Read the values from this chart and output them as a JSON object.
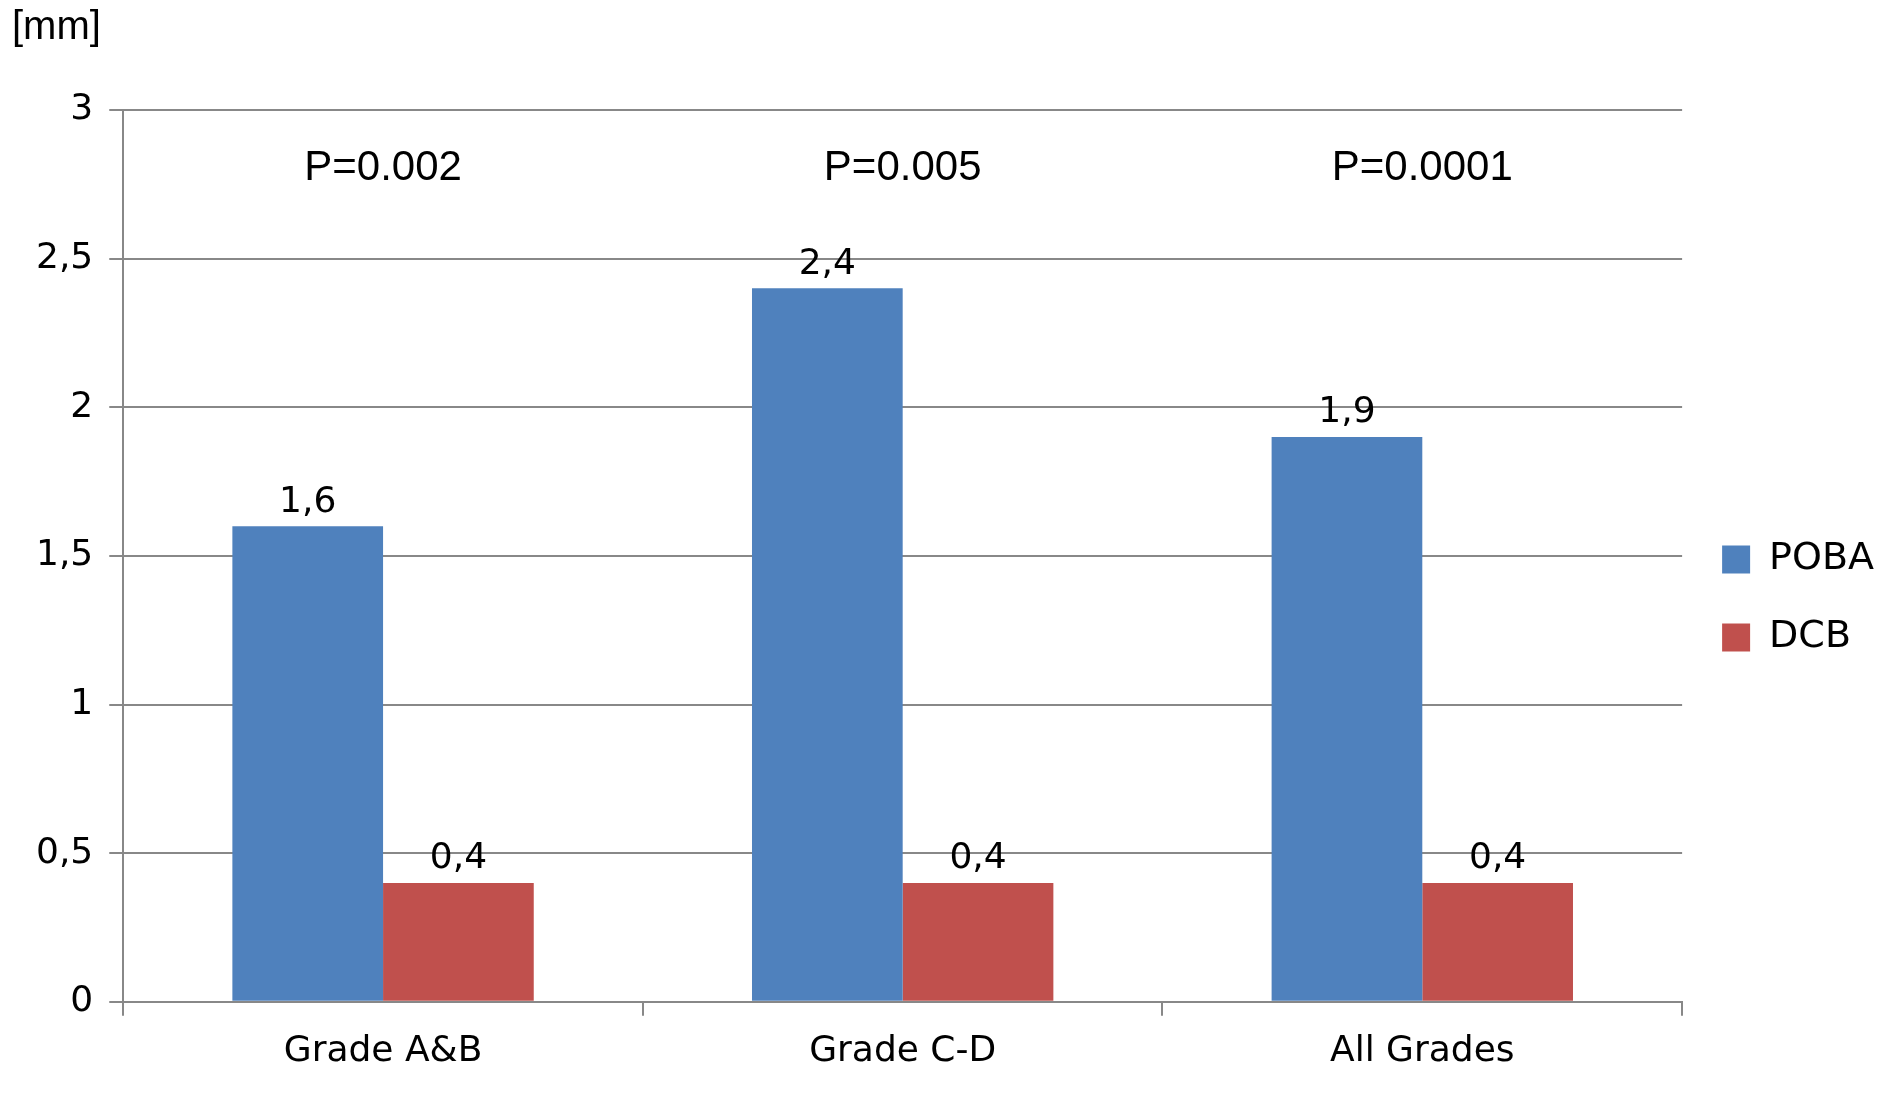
{
  "chart_data": {
    "type": "bar",
    "ylabel": "[mm]",
    "categories": [
      "Grade A&B",
      "Grade C-D",
      "All Grades"
    ],
    "series": [
      {
        "name": "POBA",
        "color": "#4f81bd",
        "values": [
          1.6,
          2.4,
          1.9
        ],
        "value_labels": [
          "1,6",
          "2,4",
          "1,9"
        ]
      },
      {
        "name": "DCB",
        "color": "#c0504d",
        "values": [
          0.4,
          0.4,
          0.4
        ],
        "value_labels": [
          "0,4",
          "0,4",
          "0,4"
        ]
      }
    ],
    "ylim": [
      0,
      3
    ],
    "yticks": [
      0,
      {
        "value": 0.5,
        "label": "0,5"
      },
      1,
      {
        "value": 1.5,
        "label": "1,5"
      },
      2,
      {
        "value": 2.5,
        "label": "2,5"
      },
      3
    ],
    "annotations": [
      "P=0.002",
      "P=0.005",
      "P=0.0001"
    ],
    "grid": "y",
    "legend": "right"
  }
}
